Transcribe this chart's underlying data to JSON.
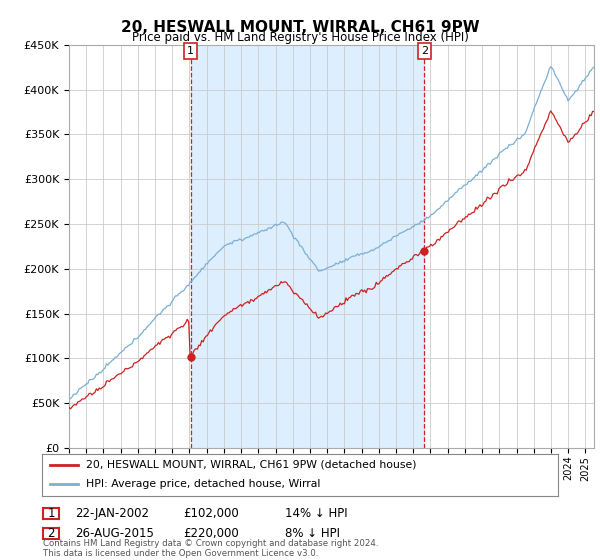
{
  "title": "20, HESWALL MOUNT, WIRRAL, CH61 9PW",
  "subtitle": "Price paid vs. HM Land Registry's House Price Index (HPI)",
  "ylim": [
    0,
    450000
  ],
  "yticks": [
    0,
    50000,
    100000,
    150000,
    200000,
    250000,
    300000,
    350000,
    400000,
    450000
  ],
  "ytick_labels": [
    "£0",
    "£50K",
    "£100K",
    "£150K",
    "£200K",
    "£250K",
    "£300K",
    "£350K",
    "£400K",
    "£450K"
  ],
  "legend_line1": "20, HESWALL MOUNT, WIRRAL, CH61 9PW (detached house)",
  "legend_line2": "HPI: Average price, detached house, Wirral",
  "sale1_date": "22-JAN-2002",
  "sale1_price_str": "£102,000",
  "sale1_price": 102000,
  "sale1_year": 2002.06,
  "sale1_label": "14% ↓ HPI",
  "sale2_date": "26-AUG-2015",
  "sale2_price_str": "£220,000",
  "sale2_price": 220000,
  "sale2_year": 2015.65,
  "sale2_label": "8% ↓ HPI",
  "copyright_text": "Contains HM Land Registry data © Crown copyright and database right 2024.\nThis data is licensed under the Open Government Licence v3.0.",
  "line_color_hpi": "#7ab0d4",
  "line_color_price": "#cc2222",
  "vline_color": "#cc2222",
  "shade_color": "#ddeeff",
  "background_color": "#ffffff",
  "grid_color": "#cccccc"
}
